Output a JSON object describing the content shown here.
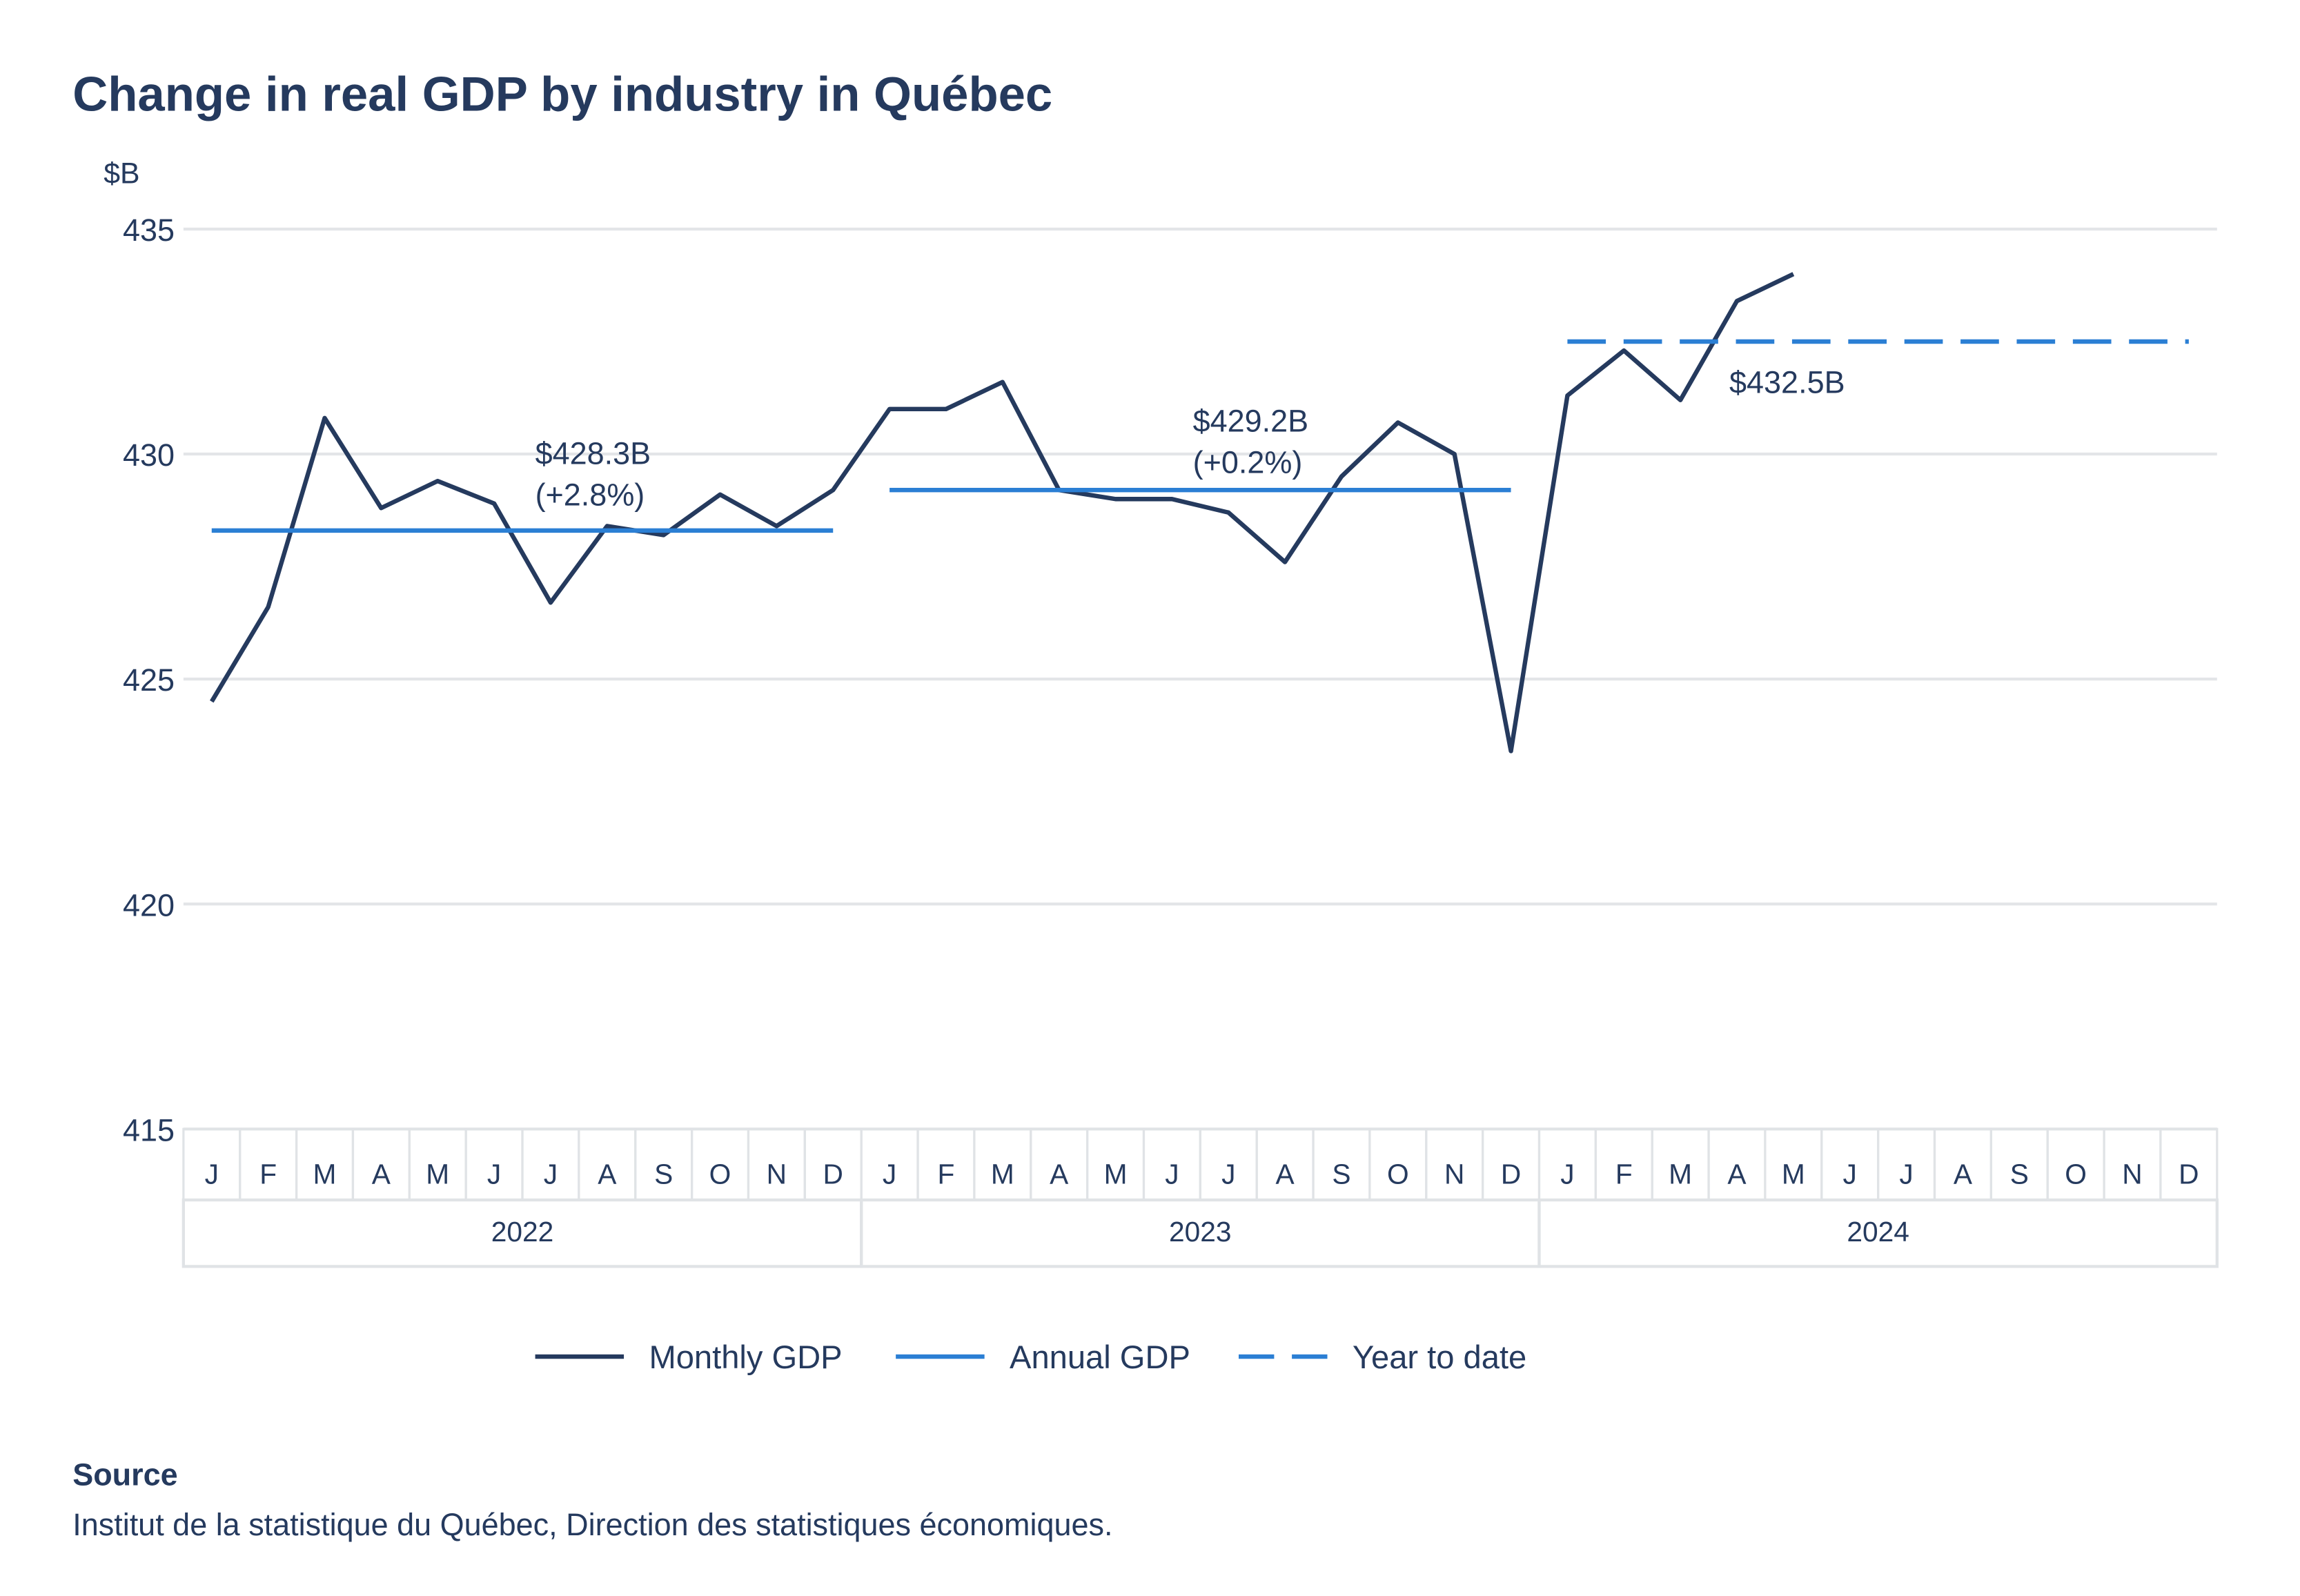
{
  "chart_data": {
    "type": "line",
    "title": "Change in real GDP by industry in Québec",
    "y_unit": "$B",
    "categories": [
      "J",
      "F",
      "M",
      "A",
      "M",
      "J",
      "J",
      "A",
      "S",
      "O",
      "N",
      "D",
      "J",
      "F",
      "M",
      "A",
      "M",
      "J",
      "J",
      "A",
      "S",
      "O",
      "N",
      "D",
      "J",
      "F",
      "M",
      "A",
      "M",
      "J",
      "J",
      "A",
      "S",
      "O",
      "N",
      "D"
    ],
    "x_groups": [
      "2022",
      "2023",
      "2024"
    ],
    "series": [
      {
        "name": "Monthly GDP",
        "color": "#253a5e",
        "values": [
          424.5,
          426.6,
          430.8,
          428.8,
          429.4,
          428.9,
          426.7,
          428.4,
          428.2,
          429.1,
          428.4,
          429.2,
          431.0,
          431.0,
          431.6,
          429.2,
          429.0,
          429.0,
          428.7,
          427.6,
          429.5,
          430.7,
          430.0,
          423.4,
          431.3,
          432.3,
          431.2,
          433.4,
          434.0,
          null,
          null,
          null,
          null,
          null,
          null,
          null
        ]
      },
      {
        "name": "Annual GDP",
        "color": "#2b7fd4",
        "group_values": [
          428.3,
          429.2,
          null
        ],
        "value_labels": [
          "$428.3B",
          "$429.2B",
          null
        ],
        "change_labels": [
          "(+2.8%)",
          "(+0.2%)",
          null
        ]
      },
      {
        "name": "Year to date",
        "color": "#2b7fd4",
        "dashed": true,
        "group_values": [
          null,
          null,
          432.5
        ],
        "value_labels": [
          null,
          null,
          "$432.5B"
        ]
      }
    ],
    "ylim": [
      415,
      435
    ],
    "yticks": [
      415,
      420,
      425,
      430,
      435
    ],
    "grid": true,
    "source_heading": "Source",
    "source": "Institut de la statistique du Québec, Direction des statistiques économiques."
  }
}
